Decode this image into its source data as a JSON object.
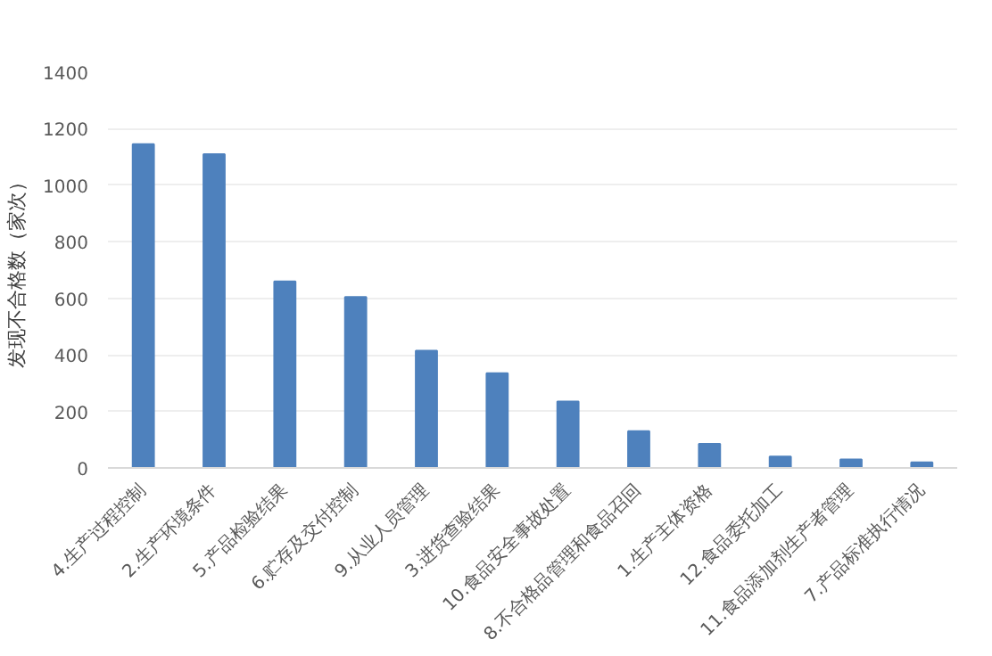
{
  "chart_data": {
    "type": "bar",
    "ylabel": "发现不合格数（家次）",
    "categories": [
      "4.生产过程控制",
      "2.生产环境条件",
      "5.产品检验结果",
      "6.贮存及交付控制",
      "9.从业人员管理",
      "3.进货查验结果",
      "10.食品安全事故处置",
      "8.不合格品管理和食品召回",
      "1.生产主体资格",
      "12.食品委托加工",
      "11.食品添加剂生产者管理",
      "7.产品标准执行情况"
    ],
    "values": [
      1145,
      1110,
      660,
      605,
      415,
      335,
      235,
      130,
      85,
      40,
      30,
      20
    ],
    "color": "#4e81bd",
    "ylim": [
      0,
      1400
    ],
    "yticks": [
      0,
      200,
      400,
      600,
      800,
      1000,
      1200,
      1400
    ],
    "grid": "y"
  }
}
